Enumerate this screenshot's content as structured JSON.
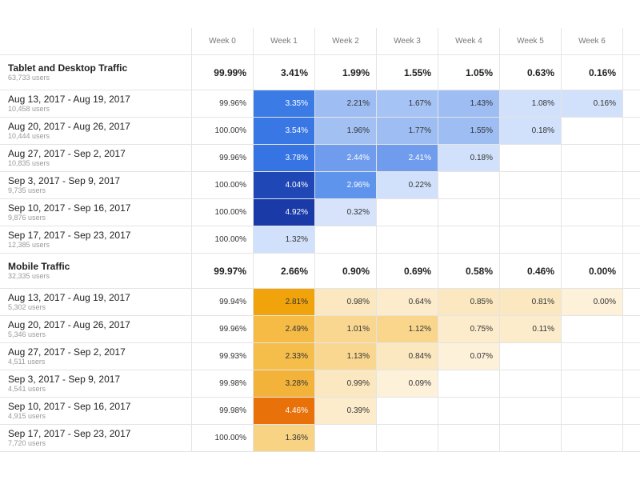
{
  "header": {
    "columns": [
      "Week 0",
      "Week 1",
      "Week 2",
      "Week 3",
      "Week 4",
      "Week 5",
      "Week 6"
    ]
  },
  "groups": [
    {
      "title": "Tablet and Desktop Traffic",
      "users": "63,733 users",
      "totals": [
        "99.99%",
        "3.41%",
        "1.99%",
        "1.55%",
        "1.05%",
        "0.63%",
        "0.16%"
      ],
      "rows": [
        {
          "label": "Aug 13, 2017 - Aug 19, 2017",
          "users": "10,458 users",
          "cells": [
            "99.96%",
            "3.35%",
            "2.21%",
            "1.67%",
            "1.43%",
            "1.08%",
            "0.16%"
          ],
          "colors": [
            "#ffffff",
            "#3b7be6",
            "#9dbdf3",
            "#a5c3f4",
            "#9dbdf3",
            "#d2e1fb",
            "#d2e1fb"
          ]
        },
        {
          "label": "Aug 20, 2017 - Aug 26, 2017",
          "users": "10,444 users",
          "cells": [
            "100.00%",
            "3.54%",
            "1.96%",
            "1.77%",
            "1.55%",
            "0.18%"
          ],
          "colors": [
            "#ffffff",
            "#3877e4",
            "#a3c0f3",
            "#9dbdf3",
            "#9dbdf3",
            "#d2e1fb"
          ]
        },
        {
          "label": "Aug 27, 2017 - Sep 2, 2017",
          "users": "10,835 users",
          "cells": [
            "99.96%",
            "3.78%",
            "2.44%",
            "2.41%",
            "0.18%"
          ],
          "colors": [
            "#ffffff",
            "#3574e2",
            "#6f9cec",
            "#6f9cec",
            "#d2e1fb"
          ]
        },
        {
          "label": "Sep 3, 2017 - Sep 9, 2017",
          "users": "9,735 users",
          "cells": [
            "100.00%",
            "4.04%",
            "2.96%",
            "0.22%"
          ],
          "colors": [
            "#ffffff",
            "#1f47b5",
            "#5f94ec",
            "#d2e1fb"
          ]
        },
        {
          "label": "Sep 10, 2017 - Sep 16, 2017",
          "users": "9,876 users",
          "cells": [
            "100.00%",
            "4.92%",
            "0.32%"
          ],
          "colors": [
            "#ffffff",
            "#1a3aa8",
            "#d6e3fb"
          ]
        },
        {
          "label": "Sep 17, 2017 - Sep 23, 2017",
          "users": "12,385 users",
          "cells": [
            "100.00%",
            "1.32%"
          ],
          "colors": [
            "#ffffff",
            "#d2e1fb"
          ]
        }
      ]
    },
    {
      "title": "Mobile Traffic",
      "users": "32,335 users",
      "totals": [
        "99.97%",
        "2.66%",
        "0.90%",
        "0.69%",
        "0.58%",
        "0.46%",
        "0.00%"
      ],
      "rows": [
        {
          "label": "Aug 13, 2017 - Aug 19, 2017",
          "users": "5,302 users",
          "cells": [
            "99.94%",
            "2.81%",
            "0.98%",
            "0.64%",
            "0.85%",
            "0.81%",
            "0.00%"
          ],
          "colors": [
            "#ffffff",
            "#f0a30a",
            "#fbe8c0",
            "#fceccc",
            "#fbe8c0",
            "#fbe8c0",
            "#fdf1d9"
          ]
        },
        {
          "label": "Aug 20, 2017 - Aug 26, 2017",
          "users": "5,346 users",
          "cells": [
            "99.96%",
            "2.49%",
            "1.01%",
            "1.12%",
            "0.75%",
            "0.11%"
          ],
          "colors": [
            "#ffffff",
            "#f5bb45",
            "#f9d790",
            "#f9d68c",
            "#fceccc",
            "#fceccc"
          ]
        },
        {
          "label": "Aug 27, 2017 - Sep 2, 2017",
          "users": "4,511 users",
          "cells": [
            "99.93%",
            "2.33%",
            "1.13%",
            "0.84%",
            "0.07%"
          ],
          "colors": [
            "#ffffff",
            "#f5bd4a",
            "#f9d790",
            "#fbe8c0",
            "#fdf1d9"
          ]
        },
        {
          "label": "Sep 3, 2017 - Sep 9, 2017",
          "users": "4,541 users",
          "cells": [
            "99.98%",
            "3.28%",
            "0.99%",
            "0.09%"
          ],
          "colors": [
            "#ffffff",
            "#f3b33b",
            "#fbe8c0",
            "#fdf1d9"
          ]
        },
        {
          "label": "Sep 10, 2017 - Sep 16, 2017",
          "users": "4,915 users",
          "cells": [
            "99.98%",
            "4.46%",
            "0.39%"
          ],
          "colors": [
            "#ffffff",
            "#e8710a",
            "#fceccc"
          ]
        },
        {
          "label": "Sep 17, 2017 - Sep 23, 2017",
          "users": "7,720 users",
          "cells": [
            "100.00%",
            "1.36%"
          ],
          "colors": [
            "#ffffff",
            "#f8d383"
          ]
        }
      ]
    }
  ]
}
